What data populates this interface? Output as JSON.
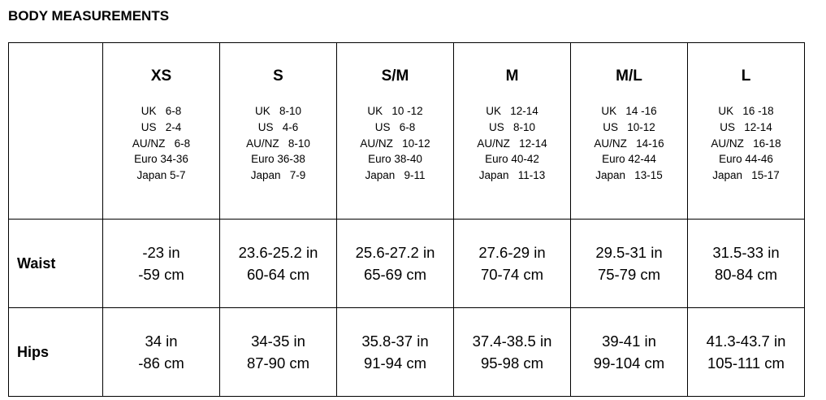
{
  "title": "BODY MEASUREMENTS",
  "sizes": [
    {
      "label": "XS",
      "conversions": [
        "UK   6-8",
        "US   2-4",
        "AU/NZ   6-8",
        "Euro 34-36",
        "Japan 5-7"
      ]
    },
    {
      "label": "S",
      "conversions": [
        "UK   8-10",
        "US   4-6",
        "AU/NZ   8-10",
        "Euro 36-38",
        "Japan   7-9"
      ]
    },
    {
      "label": "S/M",
      "conversions": [
        "UK   10 -12",
        "US   6-8",
        "AU/NZ   10-12",
        "Euro 38-40",
        "Japan   9-11"
      ]
    },
    {
      "label": "M",
      "conversions": [
        "UK   12-14",
        "US   8-10",
        "AU/NZ   12-14",
        "Euro 40-42",
        "Japan   11-13"
      ]
    },
    {
      "label": "M/L",
      "conversions": [
        "UK   14 -16",
        "US   10-12",
        "AU/NZ   14-16",
        "Euro 42-44",
        "Japan   13-15"
      ]
    },
    {
      "label": "L",
      "conversions": [
        "UK   16 -18",
        "US   12-14",
        "AU/NZ   16-18",
        "Euro 44-46",
        "Japan   15-17"
      ]
    }
  ],
  "rows": [
    {
      "label": "Waist",
      "values": [
        [
          "-23 in",
          "-59 cm"
        ],
        [
          "23.6-25.2 in",
          "60-64 cm"
        ],
        [
          "25.6-27.2 in",
          "65-69 cm"
        ],
        [
          "27.6-29 in",
          "70-74 cm"
        ],
        [
          "29.5-31 in",
          "75-79 cm"
        ],
        [
          "31.5-33 in",
          "80-84 cm"
        ]
      ]
    },
    {
      "label": "Hips",
      "values": [
        [
          "34 in",
          "-86 cm"
        ],
        [
          "34-35 in",
          "87-90 cm"
        ],
        [
          "35.8-37 in",
          "91-94 cm"
        ],
        [
          "37.4-38.5 in",
          "95-98 cm"
        ],
        [
          "39-41 in",
          "99-104 cm"
        ],
        [
          "41.3-43.7 in",
          "105-111 cm"
        ]
      ]
    }
  ]
}
